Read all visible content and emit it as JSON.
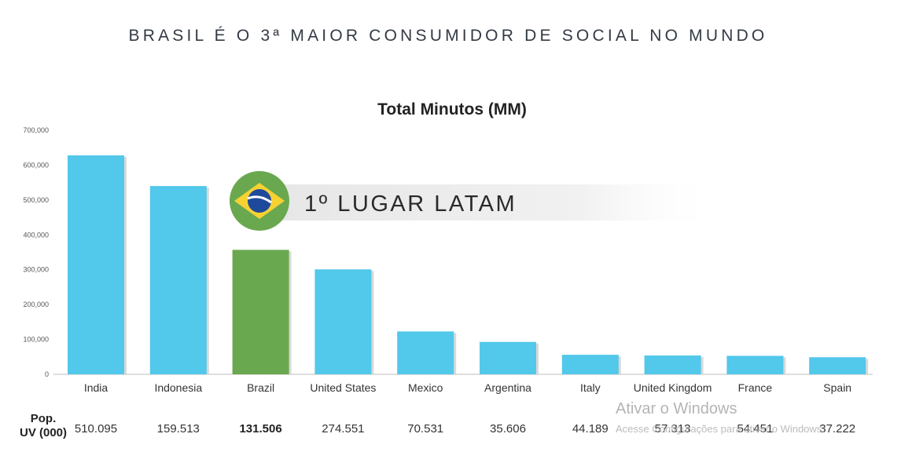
{
  "slide_title": "BRASIL É O 3ª MAIOR CONSUMIDOR DE SOCIAL NO MUNDO",
  "banner": {
    "text": "1º LUGAR LATAM",
    "icon": "brazil-flag-icon"
  },
  "colors": {
    "bar": "#52c8ea",
    "highlight": "#6aa84f"
  },
  "pop_label": [
    "Pop.",
    "UV (000)"
  ],
  "watermark": {
    "title": "Ativar o Windows",
    "subtitle": "Acesse Configurações para ativar o Windows."
  },
  "chart_data": {
    "type": "bar",
    "title": "Total Minutos (MM)",
    "categories": [
      "India",
      "Indonesia",
      "Brazil",
      "United States",
      "Mexico",
      "Argentina",
      "Italy",
      "United Kingdom",
      "France",
      "Spain"
    ],
    "values": [
      628000,
      540000,
      357000,
      301000,
      123000,
      93000,
      56000,
      54000,
      53000,
      49000
    ],
    "highlight": "Brazil",
    "ylim": [
      0,
      700000
    ],
    "yticks": [
      "0",
      "100,000",
      "200,000",
      "300,000",
      "400,000",
      "500,000",
      "600,000",
      "700,000"
    ],
    "pop_uv": [
      "510.095",
      "159.513",
      "131.506",
      "274.551",
      "70.531",
      "35.606",
      "44.189",
      "57.313",
      "54.451",
      "37.222"
    ],
    "grid": false,
    "legend": "none"
  }
}
